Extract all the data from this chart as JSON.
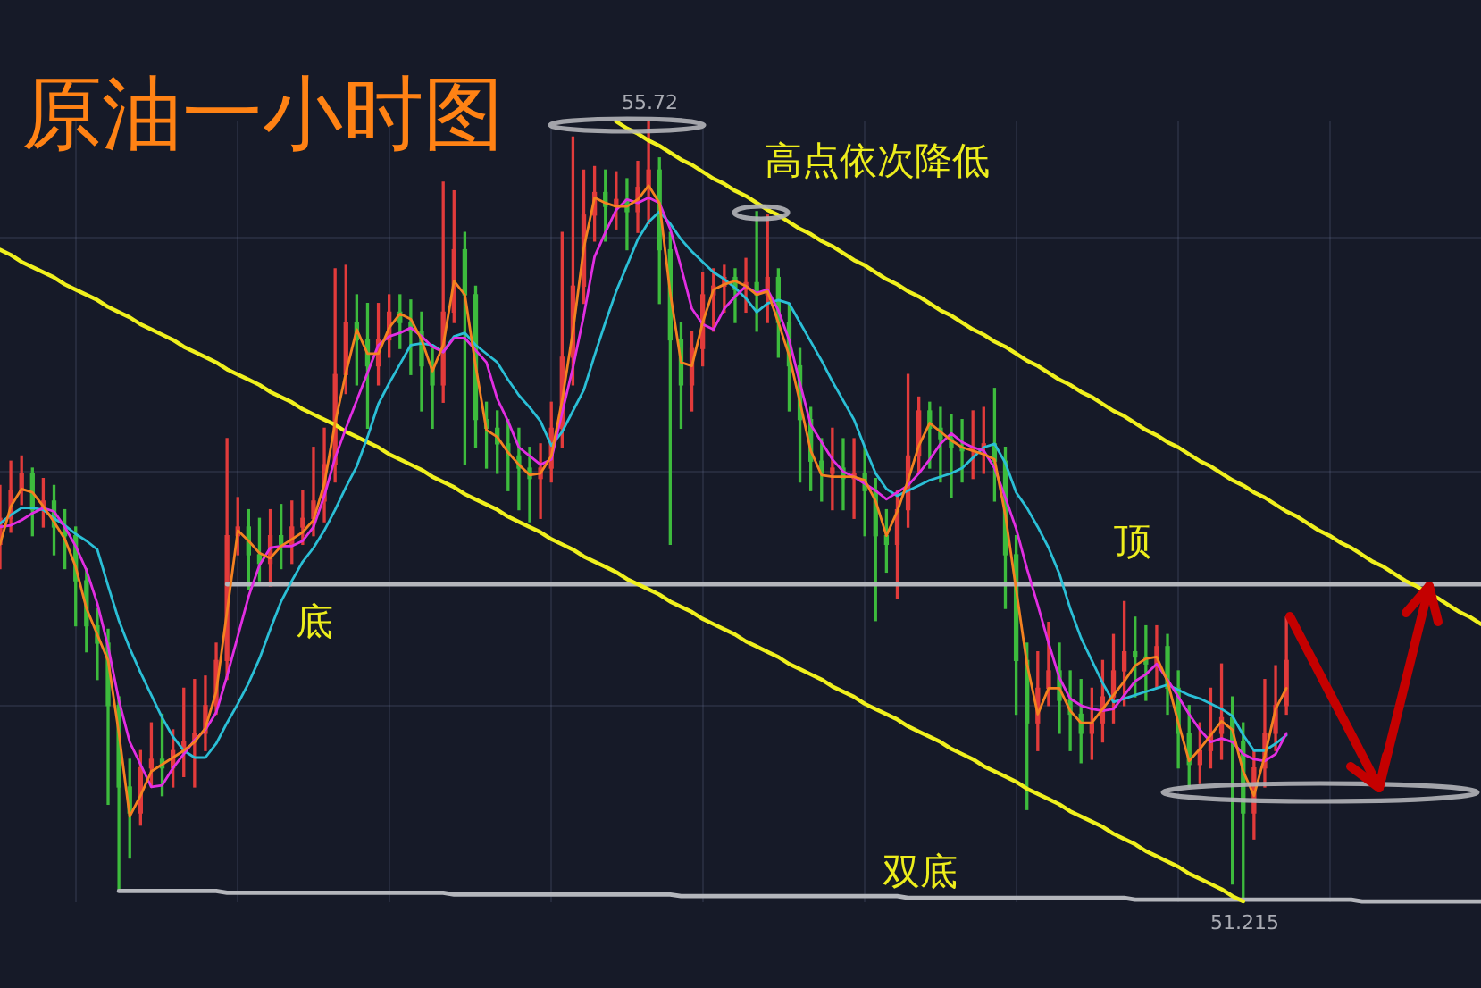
{
  "chart_data": {
    "type": "candlestick",
    "title": "原油一小时图",
    "categories": [
      null,
      null,
      null,
      null,
      null,
      null,
      null,
      null,
      null,
      null,
      null,
      null,
      null,
      null,
      null,
      null,
      null,
      null,
      null,
      null,
      null,
      null,
      null,
      null,
      null,
      null,
      null,
      null,
      null,
      null,
      null,
      null,
      null,
      null,
      null,
      null,
      null,
      null,
      null,
      null,
      null,
      null,
      null,
      null,
      null,
      null,
      null,
      null,
      null,
      null,
      null,
      null,
      null,
      null,
      null,
      null,
      null,
      null,
      null,
      null,
      null,
      null,
      null,
      null,
      null,
      null,
      null,
      null,
      null,
      null,
      null,
      null,
      null,
      null,
      null,
      null,
      null,
      null,
      null,
      null,
      null,
      null,
      null,
      null,
      null,
      null,
      null,
      null,
      null,
      null,
      null,
      null,
      null,
      null,
      null,
      null,
      null,
      null,
      null,
      null,
      null,
      null,
      null,
      null,
      null,
      null,
      null,
      null,
      null,
      null,
      null,
      null,
      null,
      null,
      null,
      null,
      null,
      null,
      null,
      null,
      null,
      null,
      null,
      null,
      null,
      null,
      null,
      null,
      null,
      null,
      null,
      null,
      null,
      null,
      null,
      null,
      null,
      null
    ],
    "ohlc": [
      [
        53.28,
        53.62,
        53.14,
        53.43
      ],
      [
        53.43,
        53.76,
        53.35,
        53.59
      ],
      [
        53.59,
        53.79,
        53.51,
        53.69
      ],
      [
        53.69,
        53.72,
        53.33,
        53.48
      ],
      [
        53.48,
        53.66,
        53.38,
        53.53
      ],
      [
        53.53,
        53.62,
        53.22,
        53.38
      ],
      [
        53.38,
        53.48,
        53.14,
        53.33
      ],
      [
        53.33,
        53.38,
        52.81,
        53.07
      ],
      [
        53.07,
        53.14,
        52.66,
        52.81
      ],
      [
        52.81,
        52.91,
        52.5,
        52.71
      ],
      [
        52.71,
        52.79,
        51.78,
        52.35
      ],
      [
        52.35,
        52.4,
        51.29,
        51.88
      ],
      [
        51.88,
        52.04,
        51.47,
        51.73
      ],
      [
        51.73,
        52.09,
        51.66,
        51.99
      ],
      [
        51.99,
        52.25,
        51.88,
        52.04
      ],
      [
        52.04,
        52.3,
        51.83,
        51.99
      ],
      [
        51.99,
        52.21,
        51.88,
        52.09
      ],
      [
        52.09,
        52.45,
        51.94,
        52.14
      ],
      [
        52.14,
        52.5,
        51.88,
        52.19
      ],
      [
        52.19,
        52.52,
        52.09,
        52.35
      ],
      [
        52.35,
        52.71,
        52.3,
        52.61
      ],
      [
        52.61,
        53.89,
        52.5,
        53.33
      ],
      [
        53.33,
        53.55,
        53.22,
        53.38
      ],
      [
        53.38,
        53.48,
        53.02,
        53.22
      ],
      [
        53.22,
        53.43,
        53.07,
        53.17
      ],
      [
        53.17,
        53.48,
        53.04,
        53.33
      ],
      [
        53.33,
        53.51,
        53.14,
        53.28
      ],
      [
        53.28,
        53.53,
        53.17,
        53.38
      ],
      [
        53.38,
        53.59,
        53.28,
        53.43
      ],
      [
        53.43,
        53.84,
        53.33,
        53.53
      ],
      [
        53.53,
        53.95,
        53.41,
        53.74
      ],
      [
        53.74,
        54.87,
        53.64,
        54.26
      ],
      [
        54.26,
        54.89,
        54.15,
        54.56
      ],
      [
        54.56,
        54.72,
        54.2,
        54.46
      ],
      [
        54.46,
        54.67,
        53.95,
        54.31
      ],
      [
        54.31,
        54.67,
        54.2,
        54.46
      ],
      [
        54.46,
        54.72,
        54.36,
        54.62
      ],
      [
        54.62,
        54.72,
        54.41,
        54.56
      ],
      [
        54.56,
        54.69,
        54.26,
        54.51
      ],
      [
        54.51,
        54.62,
        54.05,
        54.31
      ],
      [
        54.31,
        54.41,
        53.95,
        54.2
      ],
      [
        54.2,
        55.37,
        54.1,
        54.62
      ],
      [
        54.62,
        55.32,
        54.56,
        54.98
      ],
      [
        54.98,
        55.08,
        53.74,
        54.72
      ],
      [
        54.72,
        54.77,
        53.84,
        54.0
      ],
      [
        54.0,
        54.1,
        53.72,
        53.95
      ],
      [
        53.95,
        54.05,
        53.69,
        53.86
      ],
      [
        53.86,
        54.0,
        53.59,
        53.79
      ],
      [
        53.79,
        53.95,
        53.48,
        53.72
      ],
      [
        53.72,
        53.84,
        53.41,
        53.66
      ],
      [
        53.66,
        53.86,
        53.43,
        53.72
      ],
      [
        53.72,
        54.1,
        53.64,
        53.95
      ],
      [
        53.95,
        55.08,
        53.84,
        54.36
      ],
      [
        54.36,
        55.63,
        54.2,
        54.77
      ],
      [
        54.77,
        55.44,
        54.67,
        55.18
      ],
      [
        55.18,
        55.46,
        55.03,
        55.31
      ],
      [
        55.31,
        55.44,
        55.03,
        55.23
      ],
      [
        55.23,
        55.43,
        55.1,
        55.27
      ],
      [
        55.27,
        55.39,
        54.98,
        55.2
      ],
      [
        55.2,
        55.49,
        55.08,
        55.34
      ],
      [
        55.34,
        55.72,
        55.13,
        55.44
      ],
      [
        55.44,
        55.51,
        54.67,
        54.98
      ],
      [
        54.98,
        55.08,
        53.28,
        54.46
      ],
      [
        54.46,
        54.56,
        53.95,
        54.2
      ],
      [
        54.2,
        54.51,
        54.05,
        54.41
      ],
      [
        54.41,
        54.85,
        54.31,
        54.72
      ],
      [
        54.72,
        54.87,
        54.51,
        54.77
      ],
      [
        54.77,
        54.89,
        54.62,
        54.82
      ],
      [
        54.82,
        54.87,
        54.56,
        54.75
      ],
      [
        54.75,
        54.93,
        54.62,
        54.79
      ],
      [
        54.79,
        55.2,
        54.51,
        54.72
      ],
      [
        54.72,
        55.18,
        54.56,
        54.82
      ],
      [
        54.82,
        54.87,
        54.36,
        54.56
      ],
      [
        54.56,
        54.67,
        54.05,
        54.31
      ],
      [
        54.31,
        54.41,
        53.64,
        54.0
      ],
      [
        54.0,
        54.07,
        53.59,
        53.76
      ],
      [
        53.76,
        53.89,
        53.53,
        53.69
      ],
      [
        53.69,
        53.95,
        53.48,
        53.72
      ],
      [
        53.72,
        53.89,
        53.48,
        53.66
      ],
      [
        53.66,
        53.89,
        53.43,
        53.69
      ],
      [
        53.69,
        53.84,
        53.33,
        53.59
      ],
      [
        53.59,
        53.66,
        52.84,
        53.33
      ],
      [
        53.33,
        53.48,
        53.12,
        53.28
      ],
      [
        53.28,
        53.59,
        52.97,
        53.48
      ],
      [
        53.48,
        54.26,
        53.38,
        53.79
      ],
      [
        53.79,
        54.13,
        53.69,
        54.05
      ],
      [
        54.05,
        54.1,
        53.72,
        53.95
      ],
      [
        53.95,
        54.07,
        53.64,
        53.89
      ],
      [
        53.89,
        54.03,
        53.55,
        53.84
      ],
      [
        53.84,
        54.0,
        53.64,
        53.82
      ],
      [
        53.82,
        54.05,
        53.66,
        53.84
      ],
      [
        53.84,
        54.07,
        53.69,
        53.86
      ],
      [
        53.86,
        54.18,
        53.53,
        53.76
      ],
      [
        53.76,
        53.84,
        52.91,
        53.22
      ],
      [
        53.22,
        53.33,
        52.3,
        52.61
      ],
      [
        52.61,
        52.71,
        51.75,
        52.25
      ],
      [
        52.25,
        52.66,
        52.09,
        52.45
      ],
      [
        52.45,
        52.83,
        52.35,
        52.55
      ],
      [
        52.55,
        52.71,
        52.19,
        52.38
      ],
      [
        52.38,
        52.55,
        52.09,
        52.3
      ],
      [
        52.3,
        52.5,
        52.02,
        52.19
      ],
      [
        52.19,
        52.45,
        52.04,
        52.25
      ],
      [
        52.25,
        52.61,
        52.14,
        52.4
      ],
      [
        52.4,
        52.76,
        52.25,
        52.55
      ],
      [
        52.55,
        52.95,
        52.35,
        52.66
      ],
      [
        52.66,
        52.86,
        52.4,
        52.63
      ],
      [
        52.63,
        52.81,
        52.38,
        52.59
      ],
      [
        52.59,
        52.81,
        52.45,
        52.69
      ],
      [
        52.69,
        52.76,
        52.3,
        52.45
      ],
      [
        52.45,
        52.55,
        51.99,
        52.19
      ],
      [
        52.19,
        52.35,
        51.88,
        52.01
      ],
      [
        52.01,
        52.25,
        51.9,
        52.09
      ],
      [
        52.09,
        52.45,
        51.99,
        52.19
      ],
      [
        52.19,
        52.59,
        52.04,
        52.28
      ],
      [
        52.28,
        52.4,
        51.32,
        52.14
      ],
      [
        52.14,
        52.25,
        51.215,
        51.73
      ],
      [
        51.73,
        52.09,
        51.58,
        51.99
      ],
      [
        51.99,
        52.5,
        51.88,
        52.19
      ],
      [
        52.19,
        52.58,
        52.09,
        52.35
      ],
      [
        52.35,
        52.86,
        52.3,
        52.61
      ],
      null,
      null,
      null,
      null,
      null,
      null,
      null,
      null,
      null,
      null,
      null,
      null,
      null,
      null,
      null,
      null,
      null,
      null
    ],
    "colors": [
      "#e23b3b",
      "#e23b3b",
      "#e23b3b",
      "#3dbb3d",
      "#e23b3b",
      "#3dbb3d",
      "#3dbb3d",
      "#3dbb3d",
      "#3dbb3d",
      "#3dbb3d",
      "#3dbb3d",
      "#3dbb3d",
      "#3dbb3d",
      "#e23b3b",
      "#e23b3b",
      "#3dbb3d",
      "#e23b3b",
      "#e23b3b",
      "#e23b3b",
      "#e23b3b",
      "#e23b3b",
      "#e23b3b",
      "#e23b3b",
      "#3dbb3d",
      "#3dbb3d",
      "#e23b3b",
      "#3dbb3d",
      "#e23b3b",
      "#e23b3b",
      "#e23b3b",
      "#e23b3b",
      "#e23b3b",
      "#e23b3b",
      "#3dbb3d",
      "#3dbb3d",
      "#e23b3b",
      "#e23b3b",
      "#3dbb3d",
      "#3dbb3d",
      "#3dbb3d",
      "#3dbb3d",
      "#e23b3b",
      "#e23b3b",
      "#3dbb3d",
      "#3dbb3d",
      "#3dbb3d",
      "#3dbb3d",
      "#3dbb3d",
      "#3dbb3d",
      "#3dbb3d",
      "#e23b3b",
      "#e23b3b",
      "#e23b3b",
      "#e23b3b",
      "#e23b3b",
      "#e23b3b",
      "#3dbb3d",
      "#e23b3b",
      "#3dbb3d",
      "#e23b3b",
      "#e23b3b",
      "#3dbb3d",
      "#3dbb3d",
      "#3dbb3d",
      "#e23b3b",
      "#e23b3b",
      "#e23b3b",
      "#e23b3b",
      "#3dbb3d",
      "#e23b3b",
      "#3dbb3d",
      "#e23b3b",
      "#3dbb3d",
      "#3dbb3d",
      "#3dbb3d",
      "#3dbb3d",
      "#3dbb3d",
      "#e23b3b",
      "#3dbb3d",
      "#e23b3b",
      "#3dbb3d",
      "#3dbb3d",
      "#3dbb3d",
      "#e23b3b",
      "#e23b3b",
      "#e23b3b",
      "#3dbb3d",
      "#3dbb3d",
      "#3dbb3d",
      "#3dbb3d",
      "#e23b3b",
      "#e23b3b",
      "#3dbb3d",
      "#3dbb3d",
      "#3dbb3d",
      "#3dbb3d",
      "#e23b3b",
      "#e23b3b",
      "#3dbb3d",
      "#3dbb3d",
      "#3dbb3d",
      "#e23b3b",
      "#e23b3b",
      "#e23b3b",
      "#e23b3b",
      "#3dbb3d",
      "#3dbb3d",
      "#e23b3b",
      "#3dbb3d",
      "#3dbb3d",
      "#3dbb3d",
      "#e23b3b",
      "#e23b3b",
      "#e23b3b",
      "#3dbb3d",
      "#3dbb3d",
      "#e23b3b",
      "#e23b3b",
      "#e23b3b",
      "#e23b3b",
      null,
      null,
      null,
      null,
      null,
      null,
      null,
      null,
      null,
      null,
      null,
      null,
      null,
      null,
      null,
      null,
      null,
      null
    ],
    "series": [
      {
        "type": "line",
        "color": "#f58220",
        "values": [
          53.28,
          53.5,
          53.6,
          53.58,
          53.5,
          53.41,
          53.31,
          53.15,
          52.91,
          52.76,
          52.61,
          52.19,
          51.71,
          51.83,
          51.97,
          52.01,
          52.05,
          52.09,
          52.14,
          52.22,
          52.43,
          52.89,
          53.36,
          53.3,
          53.23,
          53.2,
          53.27,
          53.31,
          53.35,
          53.42,
          53.63,
          53.98,
          54.27,
          54.52,
          54.38,
          54.38,
          54.53,
          54.61,
          54.58,
          54.46,
          54.28,
          54.43,
          54.8,
          54.72,
          54.31,
          53.94,
          53.9,
          53.81,
          53.74,
          53.68,
          53.69,
          53.79,
          54.11,
          54.51,
          54.99,
          55.28,
          55.25,
          55.23,
          55.23,
          55.27,
          55.35,
          55.25,
          54.73,
          54.33,
          54.31,
          54.56,
          54.75,
          54.78,
          54.8,
          54.77,
          54.72,
          54.74,
          54.56,
          54.37,
          54.1,
          53.82,
          53.68,
          53.67,
          53.67,
          53.67,
          53.65,
          53.53,
          53.33,
          53.47,
          53.65,
          53.85,
          53.98,
          53.93,
          53.88,
          53.84,
          53.82,
          53.8,
          53.77,
          53.45,
          53.02,
          52.59,
          52.3,
          52.45,
          52.45,
          52.32,
          52.25,
          52.25,
          52.33,
          52.41,
          52.49,
          52.58,
          52.62,
          52.63,
          52.49,
          52.25,
          52.03,
          52.1,
          52.18,
          52.26,
          52.21,
          51.97,
          51.83,
          52.06,
          52.33,
          52.45,
          null,
          null,
          null,
          null,
          null,
          null,
          null,
          null,
          null,
          null,
          null,
          null,
          null,
          null,
          null,
          null,
          null,
          null
        ]
      },
      {
        "type": "line",
        "color": "#e22ee2",
        "values": [
          53.38,
          53.39,
          53.42,
          53.46,
          53.49,
          53.47,
          53.38,
          53.27,
          53.13,
          52.94,
          52.69,
          52.38,
          52.14,
          52.01,
          51.88,
          51.89,
          51.99,
          52.07,
          52.15,
          52.21,
          52.31,
          52.52,
          52.75,
          52.98,
          53.16,
          53.26,
          53.27,
          53.27,
          53.3,
          53.38,
          53.56,
          53.78,
          53.95,
          54.11,
          54.27,
          54.43,
          54.48,
          54.5,
          54.53,
          54.48,
          54.42,
          54.39,
          54.47,
          54.47,
          54.4,
          54.33,
          54.12,
          53.99,
          53.84,
          53.79,
          53.74,
          53.77,
          54.04,
          54.3,
          54.6,
          54.94,
          55.08,
          55.21,
          55.27,
          55.25,
          55.28,
          55.25,
          55.1,
          54.88,
          54.64,
          54.55,
          54.52,
          54.64,
          54.71,
          54.77,
          54.73,
          54.75,
          54.63,
          54.46,
          54.21,
          53.97,
          53.87,
          53.77,
          53.7,
          53.67,
          53.63,
          53.59,
          53.54,
          53.58,
          53.62,
          53.69,
          53.77,
          53.86,
          53.92,
          53.87,
          53.84,
          53.82,
          53.72,
          53.55,
          53.37,
          53.14,
          52.93,
          52.71,
          52.51,
          52.39,
          52.35,
          52.33,
          52.32,
          52.33,
          52.41,
          52.49,
          52.53,
          52.59,
          52.5,
          52.4,
          52.3,
          52.21,
          52.14,
          52.16,
          52.14,
          52.07,
          52.04,
          52.03,
          52.07,
          52.19,
          null,
          null,
          null,
          null,
          null,
          null,
          null,
          null,
          null,
          null,
          null,
          null,
          null,
          null,
          null,
          null,
          null,
          null
        ]
      },
      {
        "type": "line",
        "color": "#2bbfd6",
        "values": [
          53.4,
          53.45,
          53.49,
          53.49,
          53.48,
          53.43,
          53.39,
          53.34,
          53.3,
          53.25,
          53.04,
          52.84,
          52.68,
          52.54,
          52.41,
          52.28,
          52.17,
          52.09,
          52.05,
          52.05,
          52.13,
          52.25,
          52.36,
          52.48,
          52.62,
          52.79,
          52.95,
          53.07,
          53.18,
          53.26,
          53.36,
          53.48,
          53.61,
          53.73,
          53.9,
          54.09,
          54.21,
          54.32,
          54.43,
          54.44,
          54.43,
          54.39,
          54.48,
          54.5,
          54.43,
          54.38,
          54.33,
          54.23,
          54.14,
          54.07,
          53.99,
          53.85,
          53.93,
          54.05,
          54.17,
          54.37,
          54.56,
          54.74,
          54.89,
          55.04,
          55.14,
          55.2,
          55.13,
          55.04,
          54.97,
          54.91,
          54.85,
          54.81,
          54.76,
          54.7,
          54.62,
          54.67,
          54.69,
          54.67,
          54.56,
          54.45,
          54.34,
          54.22,
          54.11,
          54.0,
          53.84,
          53.69,
          53.6,
          53.56,
          53.59,
          53.62,
          53.65,
          53.67,
          53.69,
          53.72,
          53.78,
          53.84,
          53.86,
          53.75,
          53.58,
          53.49,
          53.38,
          53.26,
          53.11,
          52.91,
          52.74,
          52.61,
          52.48,
          52.37,
          52.39,
          52.41,
          52.43,
          52.45,
          52.47,
          52.44,
          52.41,
          52.39,
          52.36,
          52.33,
          52.29,
          52.18,
          52.09,
          52.09,
          52.13,
          52.18,
          null,
          null,
          null,
          null,
          null,
          null,
          null,
          null,
          null,
          null,
          null,
          null,
          null,
          null,
          null,
          null,
          null,
          null
        ]
      },
      {
        "type": "line",
        "color": "#f0f01e",
        "values": [
          54.98,
          54.95,
          54.91,
          54.88,
          54.85,
          54.82,
          54.78,
          54.75,
          54.72,
          54.69,
          54.65,
          54.62,
          54.59,
          54.55,
          54.52,
          54.49,
          54.46,
          54.42,
          54.39,
          54.36,
          54.33,
          54.29,
          54.26,
          54.23,
          54.2,
          54.16,
          54.13,
          54.1,
          54.06,
          54.03,
          54.0,
          53.97,
          53.93,
          53.9,
          53.87,
          53.84,
          53.8,
          53.77,
          53.74,
          53.71,
          53.67,
          53.64,
          53.61,
          53.57,
          53.54,
          53.51,
          53.48,
          53.44,
          53.41,
          53.38,
          53.35,
          53.31,
          53.28,
          53.25,
          53.21,
          53.18,
          53.15,
          53.12,
          53.08,
          53.05,
          53.02,
          52.99,
          52.95,
          52.92,
          52.89,
          52.85,
          52.82,
          52.79,
          52.76,
          52.72,
          52.69,
          52.66,
          52.63,
          52.59,
          52.56,
          52.53,
          52.5,
          52.46,
          52.43,
          52.4,
          52.36,
          52.33,
          52.3,
          52.27,
          52.23,
          52.2,
          52.17,
          52.14,
          52.1,
          52.07,
          52.04,
          52.0,
          51.97,
          51.94,
          51.91,
          51.87,
          51.84,
          51.81,
          51.78,
          51.74,
          51.71,
          51.68,
          51.65,
          51.61,
          51.58,
          51.55,
          51.51,
          51.48,
          51.45,
          51.42,
          51.38,
          51.35,
          51.32,
          51.29,
          51.25,
          51.22,
          null,
          null,
          null,
          null,
          null,
          null,
          null,
          null,
          null,
          null,
          null,
          null,
          null,
          null,
          null,
          null,
          null,
          null,
          null,
          null,
          null,
          null
        ]
      },
      {
        "type": "line",
        "color": "#f0f01e",
        "values": [
          null,
          null,
          null,
          null,
          null,
          null,
          null,
          null,
          null,
          null,
          null,
          null,
          null,
          null,
          null,
          null,
          null,
          null,
          null,
          null,
          null,
          null,
          null,
          null,
          null,
          null,
          null,
          null,
          null,
          null,
          null,
          null,
          null,
          null,
          null,
          null,
          null,
          null,
          null,
          null,
          null,
          null,
          null,
          null,
          null,
          null,
          null,
          null,
          null,
          null,
          null,
          null,
          null,
          null,
          null,
          null,
          null,
          55.72,
          55.68,
          55.65,
          55.61,
          55.58,
          55.54,
          55.5,
          55.47,
          55.43,
          55.39,
          55.36,
          55.32,
          55.29,
          55.25,
          55.21,
          55.18,
          55.14,
          55.1,
          55.07,
          55.03,
          55.0,
          54.96,
          54.92,
          54.89,
          54.85,
          54.81,
          54.78,
          54.74,
          54.71,
          54.67,
          54.63,
          54.6,
          54.56,
          54.52,
          54.49,
          54.45,
          54.42,
          54.38,
          54.34,
          54.31,
          54.27,
          54.23,
          54.2,
          54.16,
          54.13,
          54.09,
          54.05,
          54.02,
          53.98,
          53.94,
          53.91,
          53.87,
          53.84,
          53.8,
          53.76,
          53.73,
          53.69,
          53.65,
          53.62,
          53.58,
          53.55,
          53.51,
          53.47,
          53.44,
          53.4,
          53.36,
          53.33,
          53.29,
          53.26,
          53.22,
          53.18,
          53.15,
          53.11,
          53.07,
          53.04,
          53.0,
          52.97,
          52.93,
          52.89,
          52.86,
          52.82
        ]
      },
      {
        "type": "line",
        "color": "#b4b6bc",
        "values": [
          null,
          null,
          null,
          null,
          null,
          null,
          null,
          null,
          null,
          null,
          null,
          null,
          null,
          null,
          null,
          null,
          null,
          null,
          null,
          null,
          null,
          53.05,
          53.05,
          53.05,
          53.05,
          53.05,
          53.05,
          53.05,
          53.05,
          53.05,
          53.05,
          53.05,
          53.05,
          53.05,
          53.05,
          53.05,
          53.05,
          53.05,
          53.05,
          53.05,
          53.05,
          53.05,
          53.05,
          53.05,
          53.05,
          53.05,
          53.05,
          53.05,
          53.05,
          53.05,
          53.05,
          53.05,
          53.05,
          53.05,
          53.05,
          53.05,
          53.05,
          53.05,
          53.05,
          53.05,
          53.05,
          53.05,
          53.05,
          53.05,
          53.05,
          53.05,
          53.05,
          53.05,
          53.05,
          53.05,
          53.05,
          53.05,
          53.05,
          53.05,
          53.05,
          53.05,
          53.05,
          53.05,
          53.05,
          53.05,
          53.05,
          53.05,
          53.05,
          53.05,
          53.05,
          53.05,
          53.05,
          53.05,
          53.05,
          53.05,
          53.05,
          53.05,
          53.05,
          53.05,
          53.05,
          53.05,
          53.05,
          53.05,
          53.05,
          53.05,
          53.05,
          53.05,
          53.05,
          53.05,
          53.05,
          53.05,
          53.05,
          53.05,
          53.05,
          53.05,
          53.05,
          53.05,
          53.05,
          53.05,
          53.05,
          53.05,
          53.05,
          53.05,
          53.05,
          53.05,
          53.05,
          53.05,
          53.05,
          53.05,
          53.05,
          53.05,
          53.05,
          53.05,
          53.05,
          53.05,
          53.05,
          53.05,
          53.05,
          53.05,
          53.05,
          53.05,
          53.05,
          53.05
        ]
      },
      {
        "type": "line",
        "color": "#b4b6bc",
        "values": [
          null,
          null,
          null,
          null,
          null,
          null,
          null,
          null,
          null,
          null,
          null,
          51.28,
          51.28,
          51.28,
          51.28,
          51.28,
          51.28,
          51.28,
          51.28,
          51.28,
          51.28,
          51.27,
          51.27,
          51.27,
          51.27,
          51.27,
          51.27,
          51.27,
          51.27,
          51.27,
          51.27,
          51.27,
          51.27,
          51.27,
          51.27,
          51.27,
          51.27,
          51.27,
          51.27,
          51.27,
          51.27,
          51.27,
          51.26,
          51.26,
          51.26,
          51.26,
          51.26,
          51.26,
          51.26,
          51.26,
          51.26,
          51.26,
          51.26,
          51.26,
          51.26,
          51.26,
          51.26,
          51.26,
          51.26,
          51.26,
          51.26,
          51.26,
          51.26,
          51.25,
          51.25,
          51.25,
          51.25,
          51.25,
          51.25,
          51.25,
          51.25,
          51.25,
          51.25,
          51.25,
          51.25,
          51.25,
          51.25,
          51.25,
          51.25,
          51.25,
          51.25,
          51.25,
          51.25,
          51.25,
          51.24,
          51.24,
          51.24,
          51.24,
          51.24,
          51.24,
          51.24,
          51.24,
          51.24,
          51.24,
          51.24,
          51.24,
          51.24,
          51.24,
          51.24,
          51.24,
          51.24,
          51.24,
          51.24,
          51.24,
          51.24,
          51.23,
          51.23,
          51.23,
          51.23,
          51.23,
          51.23,
          51.23,
          51.23,
          51.23,
          51.23,
          51.23,
          51.23,
          51.23,
          51.23,
          51.23,
          51.23,
          51.23,
          51.23,
          51.23,
          51.23,
          51.23,
          51.22,
          51.22,
          51.22,
          51.22,
          51.22,
          51.22,
          51.22,
          51.22,
          51.22,
          51.22,
          51.22,
          51.22
        ]
      }
    ],
    "annotations": [
      "高点依次降低",
      {
        "text": "顶",
        "y": 53.05
      },
      {
        "text": "底",
        "y": 53.05
      },
      {
        "text": "双底",
        "y": 51.24
      },
      {
        "text": "55.72",
        "y": 55.72
      },
      {
        "text": "51.215",
        "y": 51.215
      }
    ],
    "grid": true,
    "tick_labels": false,
    "yticks": [
      {
        "value": 55.05,
        "label": null
      },
      {
        "value": 53.7,
        "label": null
      },
      {
        "value": 52.35,
        "label": null
      }
    ]
  }
}
